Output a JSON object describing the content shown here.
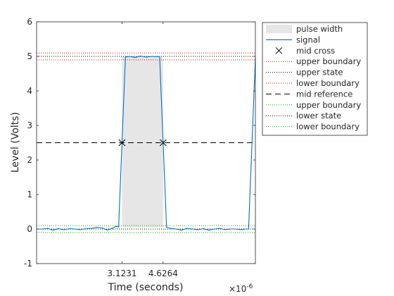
{
  "chart_data": {
    "type": "line",
    "xlabel": "Time (seconds)",
    "ylabel": "Level (Volts)",
    "x_exponent_label": "×10",
    "x_exponent_power": "-6",
    "xlim": [
      0,
      8e-06
    ],
    "ylim": [
      -1,
      6
    ],
    "yticks": [
      -1,
      0,
      1,
      2,
      3,
      4,
      5,
      6
    ],
    "xticks": [
      3.1231e-06,
      4.6264e-06
    ],
    "xtick_labels": [
      "3.1231",
      "4.6264"
    ],
    "grid": false,
    "legend_position": "top-right outside",
    "colors": {
      "signal": "#0072BD",
      "pulse_fill": "#E6E6E6",
      "high": "#FF0000",
      "low": "#00B000",
      "state": "#000000"
    },
    "pulse": {
      "start": 3.1231e-06,
      "end": 4.6264e-06,
      "y_low": 0.05,
      "y_high": 5.0
    },
    "mid_cross": [
      {
        "x": 3.1231e-06,
        "y": 2.5
      },
      {
        "x": 4.6264e-06,
        "y": 2.5
      }
    ],
    "reference_lines": {
      "upper_boundary_high": 5.1,
      "upper_state": 5.0,
      "lower_boundary_high": 4.9,
      "mid_reference": 2.5,
      "upper_boundary_low": 0.1,
      "lower_state": 0.0,
      "lower_boundary_low": -0.1
    },
    "series": [
      {
        "name": "signal",
        "x": [
          0,
          2e-07,
          4e-07,
          6e-07,
          8e-07,
          1e-06,
          1.2e-06,
          1.4e-06,
          1.6e-06,
          1.8e-06,
          2e-06,
          2.2e-06,
          2.4e-06,
          2.6e-06,
          2.8e-06,
          2.9e-06,
          3e-06,
          3.25e-06,
          3.4e-06,
          3.6e-06,
          3.8e-06,
          4e-06,
          4.2e-06,
          4.4e-06,
          4.5e-06,
          4.75e-06,
          4.9e-06,
          5.1e-06,
          5.3e-06,
          5.5e-06,
          5.7e-06,
          5.9e-06,
          6.1e-06,
          6.3e-06,
          6.5e-06,
          6.7e-06,
          6.9e-06,
          7.1e-06,
          7.3e-06,
          7.5e-06,
          7.65e-06,
          7.75e-06,
          8e-06
        ],
        "y": [
          0.0,
          0.0,
          0.02,
          -0.03,
          0.01,
          -0.02,
          0.01,
          0.0,
          -0.02,
          0.01,
          0.02,
          0.05,
          0.03,
          -0.03,
          0.03,
          0.08,
          0.06,
          4.98,
          5.0,
          4.97,
          5.01,
          4.98,
          5.0,
          4.99,
          5.0,
          0.05,
          0.02,
          0.0,
          -0.03,
          0.02,
          0.0,
          -0.02,
          0.01,
          -0.03,
          0.0,
          0.02,
          -0.02,
          0.0,
          0.0,
          -0.02,
          0.0,
          0.0,
          4.95
        ]
      }
    ],
    "legend": [
      {
        "label": "pulse width",
        "kind": "patch"
      },
      {
        "label": "signal",
        "kind": "line"
      },
      {
        "label": "mid cross",
        "kind": "marker"
      },
      {
        "label": "upper boundary",
        "kind": "dotted-red"
      },
      {
        "label": "upper state",
        "kind": "dotted-black"
      },
      {
        "label": "lower boundary",
        "kind": "dotted-red"
      },
      {
        "label": "mid reference",
        "kind": "dashed-black"
      },
      {
        "label": "upper boundary",
        "kind": "dotted-green"
      },
      {
        "label": "lower state",
        "kind": "dotted-black"
      },
      {
        "label": "lower boundary",
        "kind": "dotted-green"
      }
    ]
  }
}
